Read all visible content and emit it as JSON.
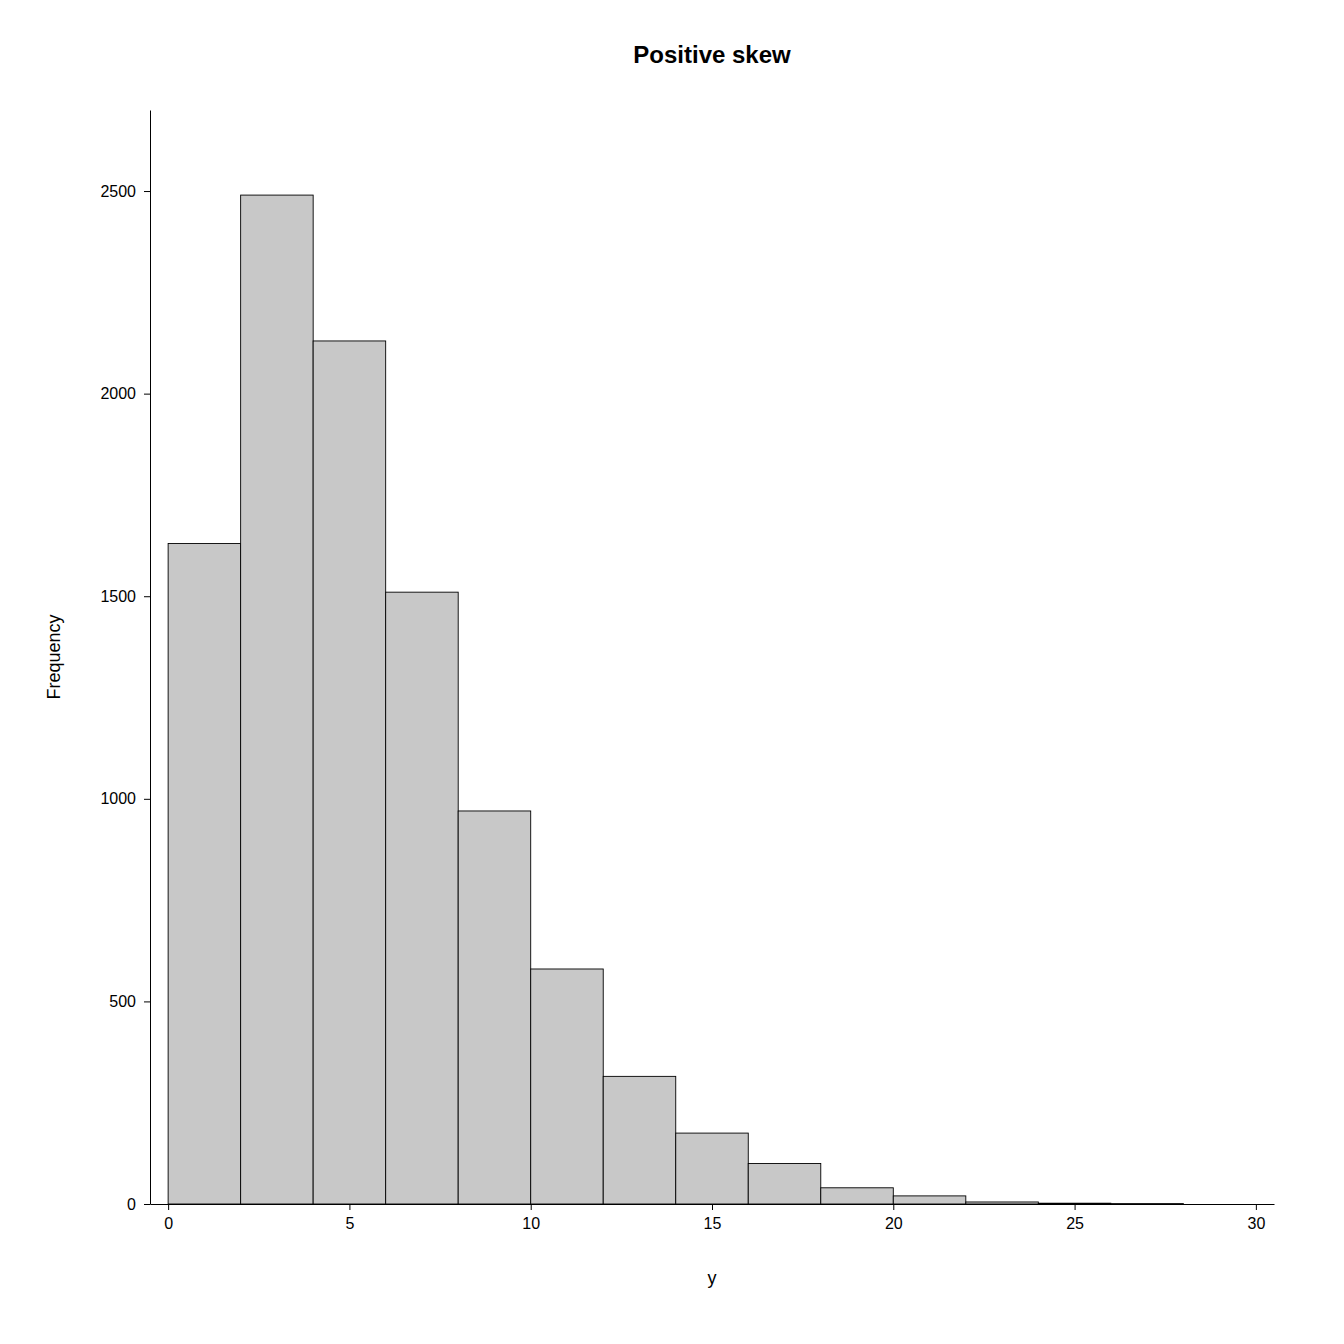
{
  "chart_data": {
    "type": "histogram",
    "title": "Positive skew",
    "xlabel": "y",
    "ylabel": "Frequency",
    "bins": [
      0,
      2,
      4,
      6,
      8,
      10,
      12,
      14,
      16,
      18,
      20,
      22,
      24,
      26,
      28,
      30
    ],
    "values": [
      1630,
      2490,
      2130,
      1510,
      970,
      580,
      315,
      175,
      100,
      40,
      20,
      5,
      2,
      1,
      0
    ],
    "color": "#c8c8c8",
    "xlim": [
      -0.5,
      30.5
    ],
    "ylim": [
      0,
      2700
    ],
    "xticks": [
      0,
      5,
      10,
      15,
      20,
      25,
      30
    ],
    "yticks": [
      0,
      500,
      1000,
      1500,
      2000,
      2500
    ],
    "grid": false
  }
}
